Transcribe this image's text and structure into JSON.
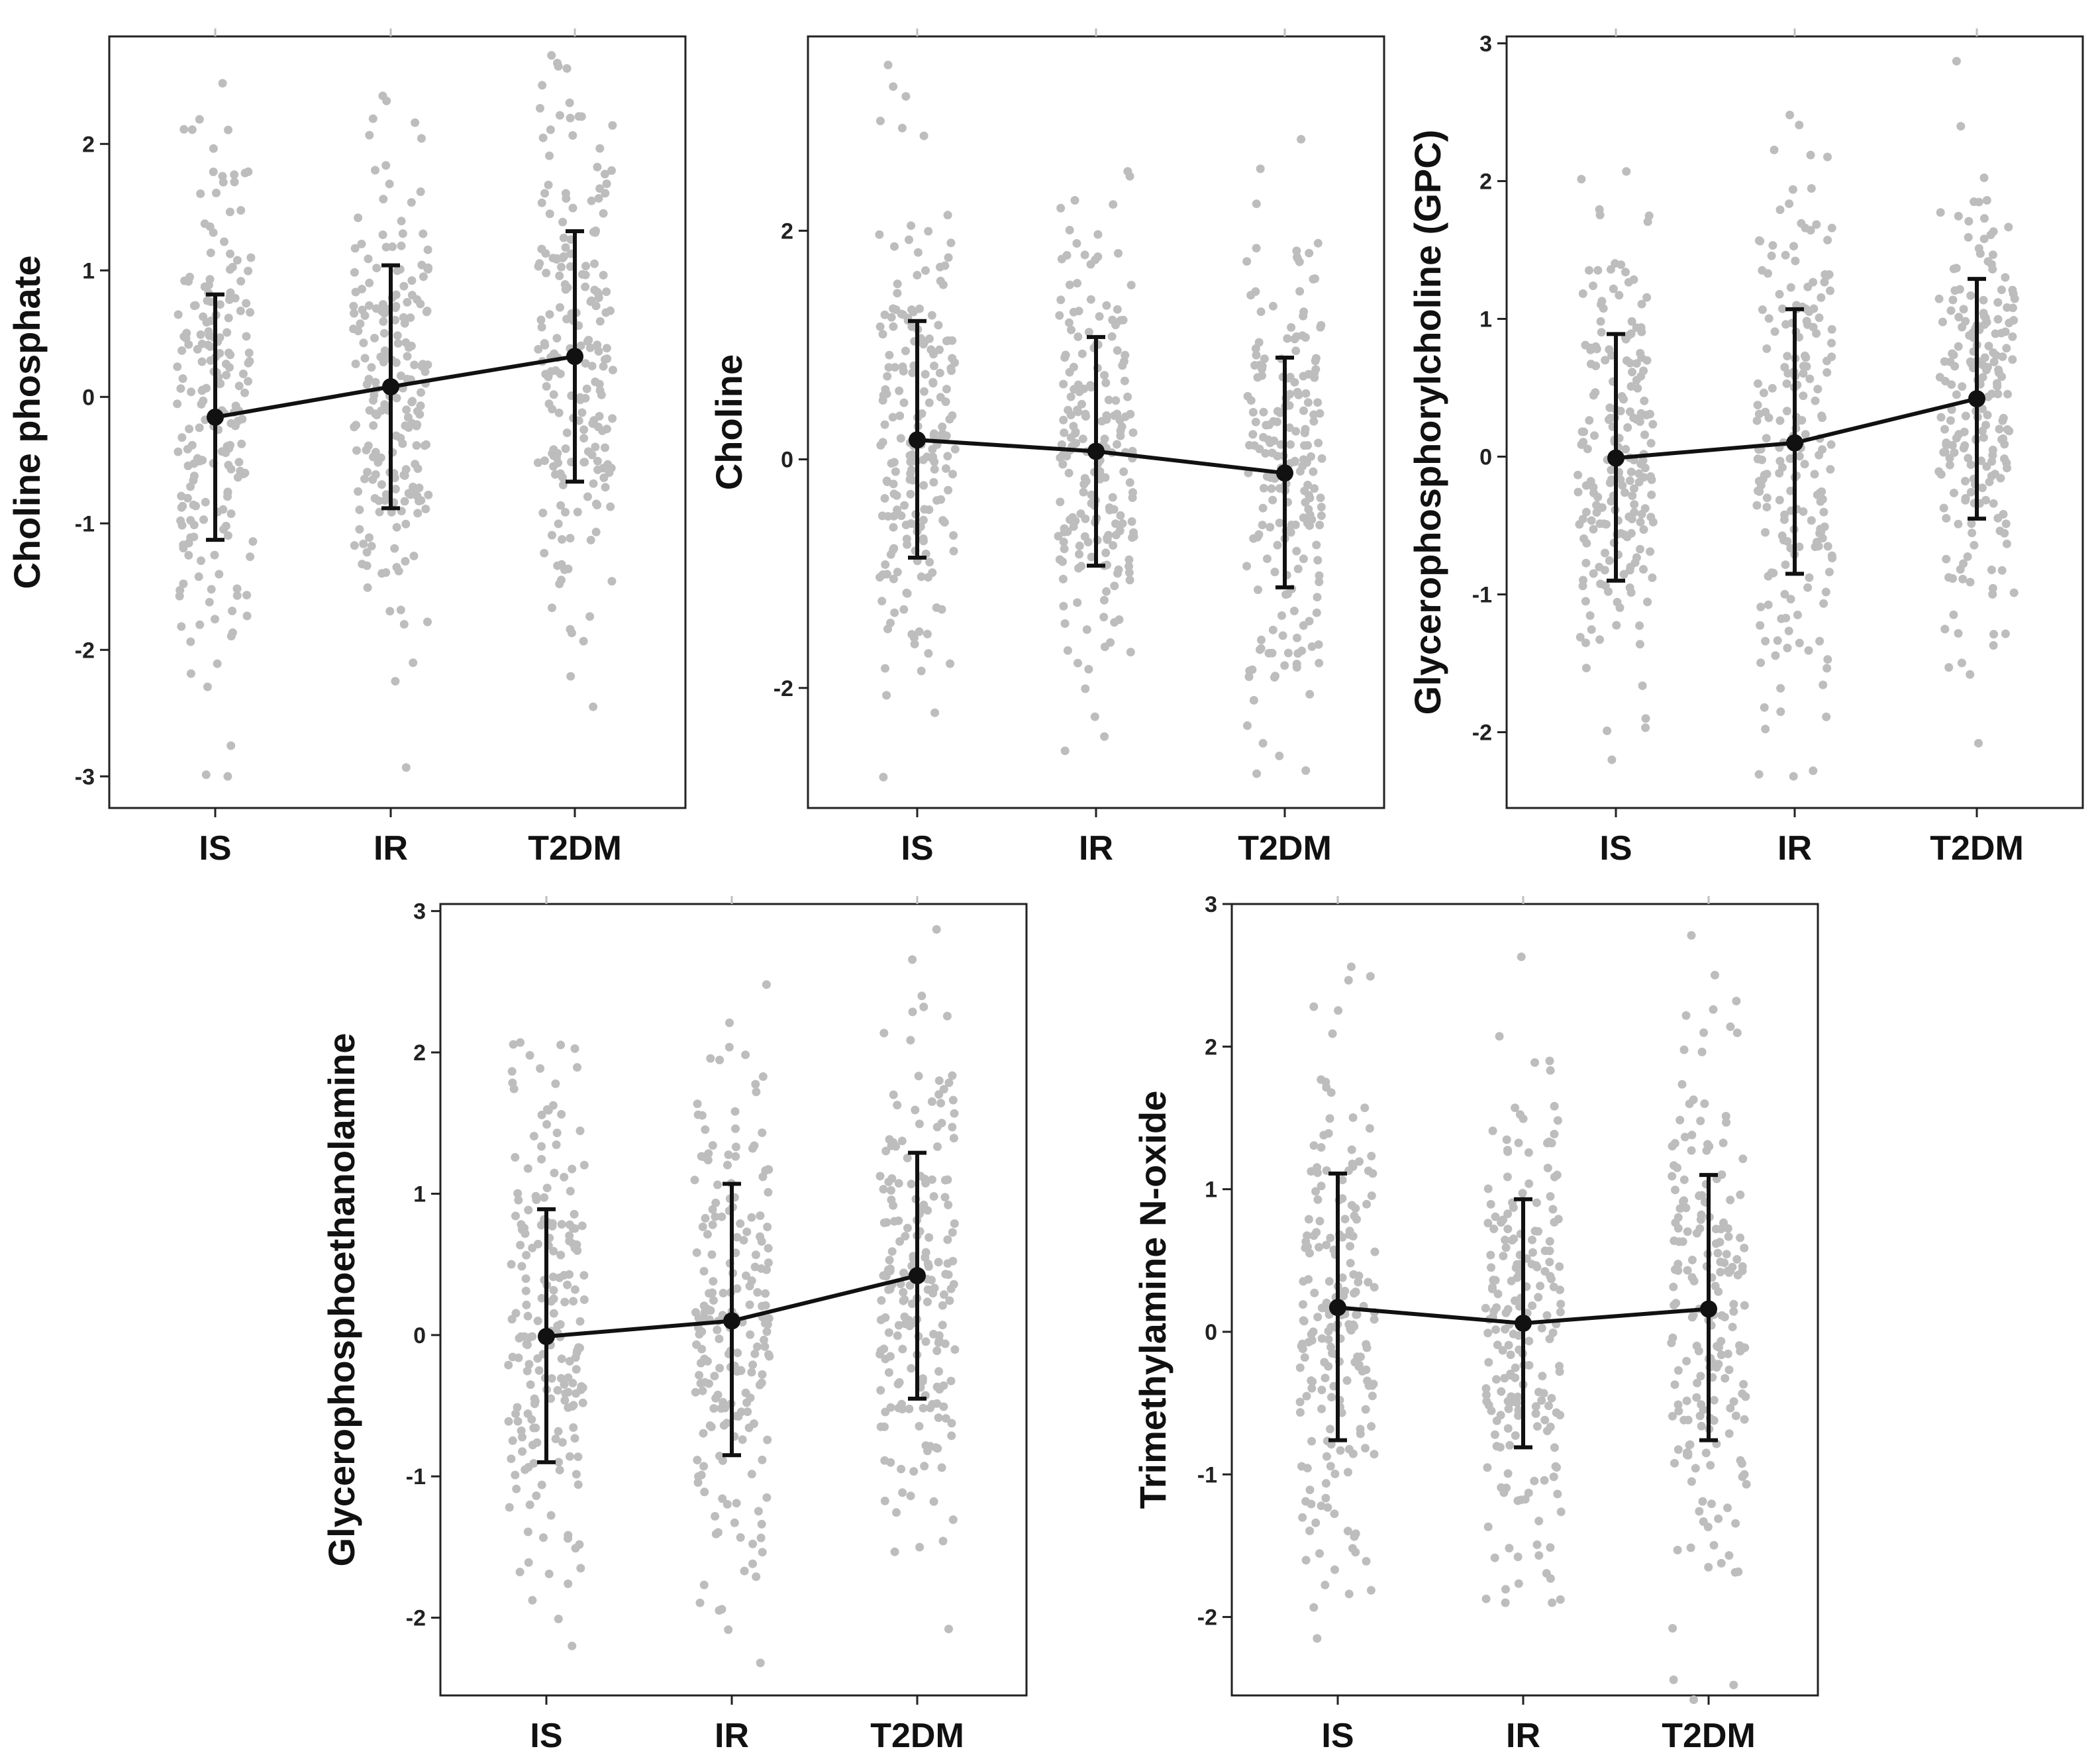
{
  "colors": {
    "points": "#bdbdbd",
    "mean": "#111111",
    "frame": "#222222"
  },
  "chart_data": [
    {
      "type": "scatter",
      "id": "choline-phosphate",
      "ylabel": "Choline phosphate",
      "categories": [
        "IS",
        "IR",
        "T2DM"
      ],
      "ylim": [
        -3.25,
        2.85
      ],
      "yticks": [
        2,
        1,
        0,
        -1,
        -2,
        -3
      ],
      "ytick_labels": [
        "2",
        "1",
        "0",
        "-1",
        "-2",
        "-3"
      ],
      "mean": [
        -0.16,
        0.08,
        0.32
      ],
      "error_low": [
        -1.13,
        -0.88,
        -0.67
      ],
      "error_high": [
        0.81,
        1.04,
        1.31
      ],
      "point_range": [
        [
          -3.0,
          2.48
        ],
        [
          -2.93,
          2.38
        ],
        [
          -2.45,
          2.7
        ]
      ],
      "points_per_group": 200
    },
    {
      "type": "scatter",
      "id": "choline",
      "ylabel": "Choline",
      "categories": [
        "IS",
        "IR",
        "T2DM"
      ],
      "ylim": [
        -3.05,
        3.7
      ],
      "yticks": [
        2,
        0,
        -2
      ],
      "ytick_labels": [
        "2",
        "0",
        "-2"
      ],
      "mean": [
        0.17,
        0.07,
        -0.12
      ],
      "error_low": [
        -0.86,
        -0.93,
        -1.12
      ],
      "error_high": [
        1.21,
        1.07,
        0.89
      ],
      "point_range": [
        [
          -2.78,
          3.45
        ],
        [
          -2.55,
          2.52
        ],
        [
          -2.75,
          2.8
        ]
      ],
      "points_per_group": 200
    },
    {
      "type": "scatter",
      "id": "gpc",
      "ylabel": "Glycerophosphorylcholine (GPC)",
      "categories": [
        "IS",
        "IR",
        "T2DM"
      ],
      "ylim": [
        -2.55,
        3.05
      ],
      "yticks": [
        3,
        2,
        1,
        0,
        -1,
        -2
      ],
      "ytick_labels": [
        "3",
        "2",
        "1",
        "0",
        "-1",
        "-2"
      ],
      "mean": [
        -0.01,
        0.1,
        0.42
      ],
      "error_low": [
        -0.9,
        -0.85,
        -0.45
      ],
      "error_high": [
        0.89,
        1.07,
        1.29
      ],
      "point_range": [
        [
          -2.2,
          2.07
        ],
        [
          -2.32,
          2.48
        ],
        [
          -2.08,
          2.87
        ]
      ],
      "points_per_group": 200
    },
    {
      "type": "scatter",
      "id": "gpe",
      "ylabel": "Glycerophosphoethanolamine",
      "categories": [
        "IS",
        "IR",
        "T2DM"
      ],
      "ylim": [
        -2.55,
        3.05
      ],
      "yticks": [
        3,
        2,
        1,
        0,
        -1,
        -2
      ],
      "ytick_labels": [
        "3",
        "2",
        "1",
        "0",
        "-1",
        "-2"
      ],
      "mean": [
        -0.01,
        0.1,
        0.42
      ],
      "error_low": [
        -0.9,
        -0.85,
        -0.45
      ],
      "error_high": [
        0.89,
        1.07,
        1.29
      ],
      "point_range": [
        [
          -2.2,
          2.07
        ],
        [
          -2.32,
          2.48
        ],
        [
          -2.08,
          2.87
        ]
      ],
      "points_per_group": 200
    },
    {
      "type": "scatter",
      "id": "tmao",
      "ylabel": "Trimethylamine N-oxide",
      "categories": [
        "IS",
        "IR",
        "T2DM"
      ],
      "ylim": [
        -2.55,
        3.0
      ],
      "yticks": [
        3,
        2,
        1,
        0,
        -1,
        -2
      ],
      "ytick_labels": [
        "3",
        "2",
        "1",
        "0",
        "-1",
        "-2"
      ],
      "mean": [
        0.17,
        0.06,
        0.16
      ],
      "error_low": [
        -0.76,
        -0.81,
        -0.76
      ],
      "error_high": [
        1.11,
        0.93,
        1.1
      ],
      "point_range": [
        [
          -2.15,
          2.56
        ],
        [
          -1.9,
          2.63
        ],
        [
          -2.58,
          2.78
        ]
      ],
      "points_per_group": 200
    }
  ]
}
